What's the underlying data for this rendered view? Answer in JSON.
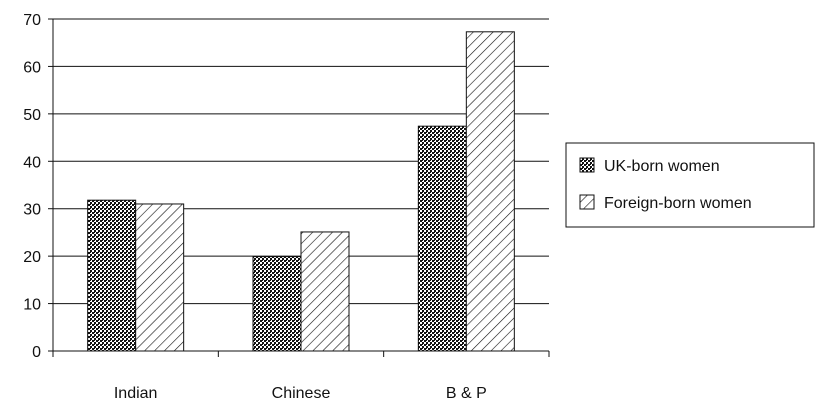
{
  "chart_data": {
    "type": "bar",
    "title": "",
    "xlabel": "",
    "ylabel": "",
    "categories": [
      "Indian",
      "Chinese",
      "B & P"
    ],
    "series": [
      {
        "name": "UK-born women",
        "values": [
          31.8,
          19.9,
          47.4
        ],
        "pattern": "crosshatch",
        "color": "#111111"
      },
      {
        "name": "Foreign-born women",
        "values": [
          31.0,
          25.1,
          67.3
        ],
        "pattern": "diagonal-hatch",
        "color": "#111111"
      }
    ],
    "ylim": [
      0,
      70
    ],
    "yticks": [
      0,
      10,
      20,
      30,
      40,
      50,
      60,
      70
    ],
    "grid": true,
    "legend_position": "right"
  }
}
